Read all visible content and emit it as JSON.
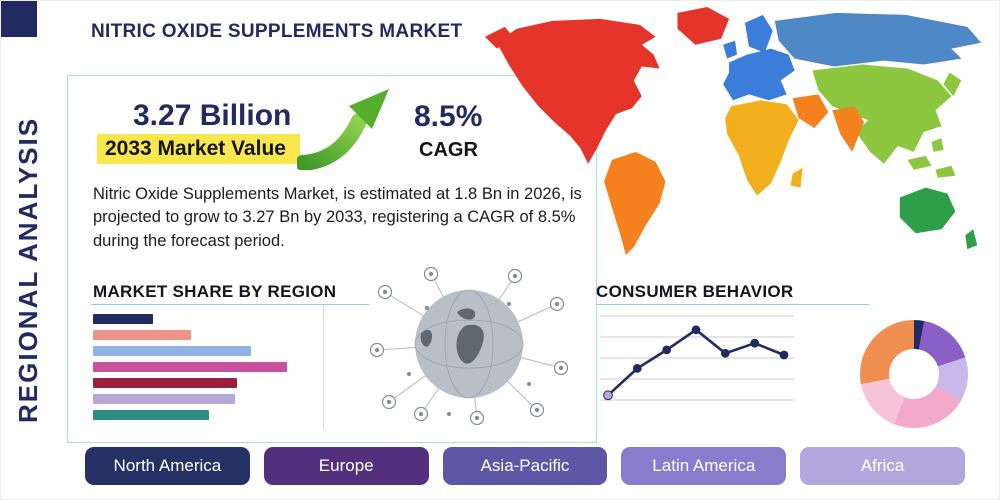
{
  "theme": {
    "navy": "#232a63",
    "rule_color": "#8fd0e2",
    "highlight_yellow": "#f8e84d",
    "arrow_green": "#55ae2c"
  },
  "header": {
    "title": "NITRIC OXIDE SUPPLEMENTS MARKET"
  },
  "vertical_label": "REGIONAL ANALYSIS",
  "stats": {
    "market_value": "3.27 Billion",
    "market_value_label": "2033 Market Value",
    "cagr_value": "8.5%",
    "cagr_label": "CAGR"
  },
  "description": "Nitric Oxide Supplements Market, is estimated at 1.8 Bn in 2026, is projected to grow to 3.27 Bn by 2033, registering a CAGR of 8.5% during the forecast period.",
  "sections": {
    "market_share_title": "MARKET SHARE BY REGION",
    "consumer_behavior_title": "CONSUMER BEHAVIOR"
  },
  "map": {
    "colors": {
      "north_america": "#e5352b",
      "greenland": "#e5352b",
      "south_america": "#f5821f",
      "europe": "#3b7dd8",
      "uk": "#3b7dd8",
      "scandinavia": "#3b7dd8",
      "russia": "#4f88c7",
      "asia": "#8dc63f",
      "japan": "#8dc63f",
      "southeast_asia": "#8dc63f",
      "india": "#f5821f",
      "middle_east": "#f5821f",
      "africa": "#f2b01e",
      "madagascar": "#f2b01e",
      "australia": "#2f9e49",
      "new_zealand": "#2f9e49"
    }
  },
  "chart_data": [
    {
      "type": "bar",
      "title": "MARKET SHARE BY REGION",
      "orientation": "horizontal",
      "values": [
        30,
        49,
        79,
        97,
        72,
        71,
        58
      ],
      "xlim": [
        0,
        100
      ],
      "colors": [
        "#232a63",
        "#f2938a",
        "#8fb4e3",
        "#c9519e",
        "#9c1f3f",
        "#b7a8d9",
        "#2e8b86"
      ]
    },
    {
      "type": "line",
      "title": "CONSUMER BEHAVIOR",
      "x": [
        1,
        2,
        3,
        4,
        5,
        6,
        7
      ],
      "values": [
        8,
        40,
        62,
        86,
        58,
        70,
        56
      ],
      "ylim": [
        0,
        100
      ],
      "grid": true,
      "line_color": "#232a63",
      "first_point_color": "#b7a8d9"
    },
    {
      "type": "pie",
      "donut": true,
      "values": [
        3,
        17,
        13,
        23,
        16,
        28
      ],
      "colors": [
        "#232a63",
        "#8a5fc8",
        "#c9b8ea",
        "#f2a9cb",
        "#f6c3d8",
        "#ef9051"
      ]
    }
  ],
  "region_buttons": [
    {
      "label": "North America",
      "color": "#253164"
    },
    {
      "label": "Europe",
      "color": "#52307e"
    },
    {
      "label": "Asia-Pacific",
      "color": "#5c58a6"
    },
    {
      "label": "Latin America",
      "color": "#8a7ccc"
    },
    {
      "label": "Africa",
      "color": "#b3a8de"
    }
  ]
}
